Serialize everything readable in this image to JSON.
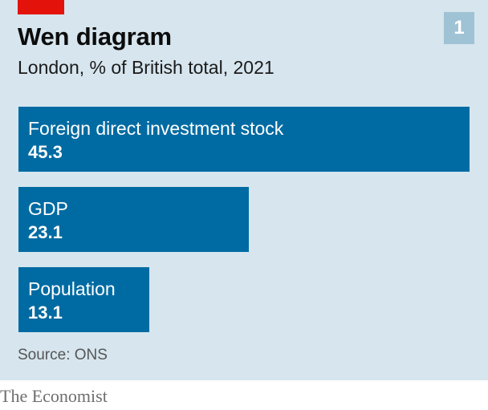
{
  "header": {
    "title": "Wen diagram",
    "subtitle": "London, % of British total, 2021",
    "chart_number": "1"
  },
  "footer": {
    "source": "Source: ONS",
    "brand": "The Economist"
  },
  "colors": {
    "background": "#d6e5ee",
    "bar": "#006ba2",
    "accent_red": "#e3120b",
    "number_badge": "#9fc3d5"
  },
  "chart_data": {
    "type": "bar",
    "orientation": "horizontal",
    "title": "Wen diagram",
    "subtitle": "London, % of British total, 2021",
    "categories": [
      "Foreign direct investment stock",
      "GDP",
      "Population"
    ],
    "values": [
      45.3,
      23.1,
      13.1
    ],
    "value_labels": [
      "45.3",
      "23.1",
      "13.1"
    ],
    "xlim": [
      0,
      45.3
    ],
    "grid": false
  }
}
